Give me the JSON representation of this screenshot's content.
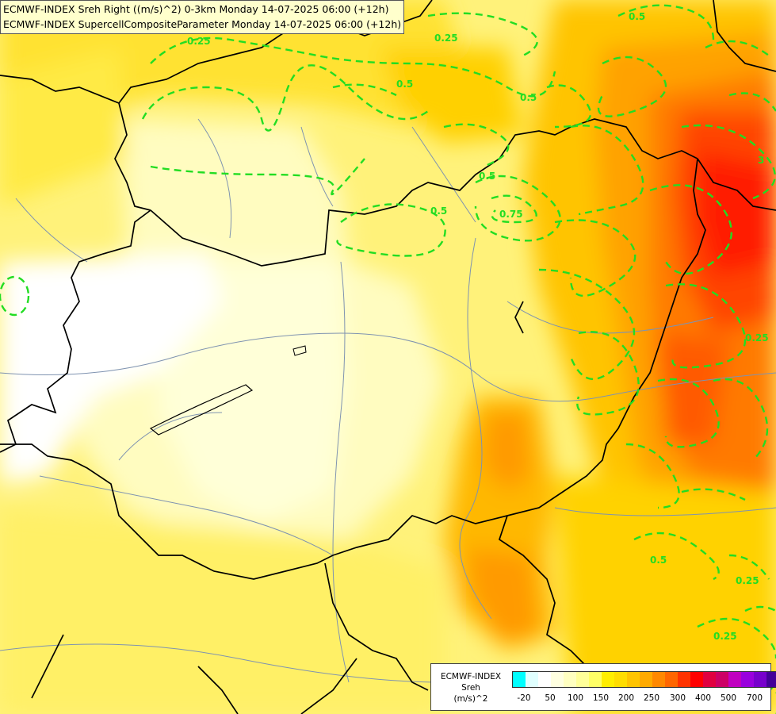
{
  "titles": {
    "line1": "ECMWF-INDEX Sreh Right ((m/s)^2) 0-3km Monday 14-07-2025 06:00 (+12h)",
    "line2": "ECMWF-INDEX SupercellCompositeParameter Monday 14-07-2025 06:00 (+12h)"
  },
  "legend": {
    "model": "ECMWF-INDEX",
    "param": "Sreh",
    "unit": "(m/s)^2",
    "colors": [
      "#00ffff",
      "#e0ffff",
      "#ffffff",
      "#ffffe0",
      "#ffffc0",
      "#ffff99",
      "#ffff66",
      "#ffee00",
      "#ffdd00",
      "#ffc400",
      "#ffaa00",
      "#ff8800",
      "#ff6600",
      "#ff3300",
      "#ff0000",
      "#e00040",
      "#cc0066",
      "#c000c0",
      "#9900dd",
      "#7700cc",
      "#440099",
      "#000077"
    ],
    "ticks": [
      "-20",
      "50",
      "100",
      "150",
      "200",
      "250",
      "300",
      "400",
      "500",
      "700"
    ]
  },
  "contour_labels": [
    "0.25",
    "0.5",
    "0.5",
    "0.5",
    "0.75",
    "0.5",
    "0.5",
    "0.25",
    "0.5",
    "0.25",
    "0.25",
    "0.25",
    "3"
  ]
}
